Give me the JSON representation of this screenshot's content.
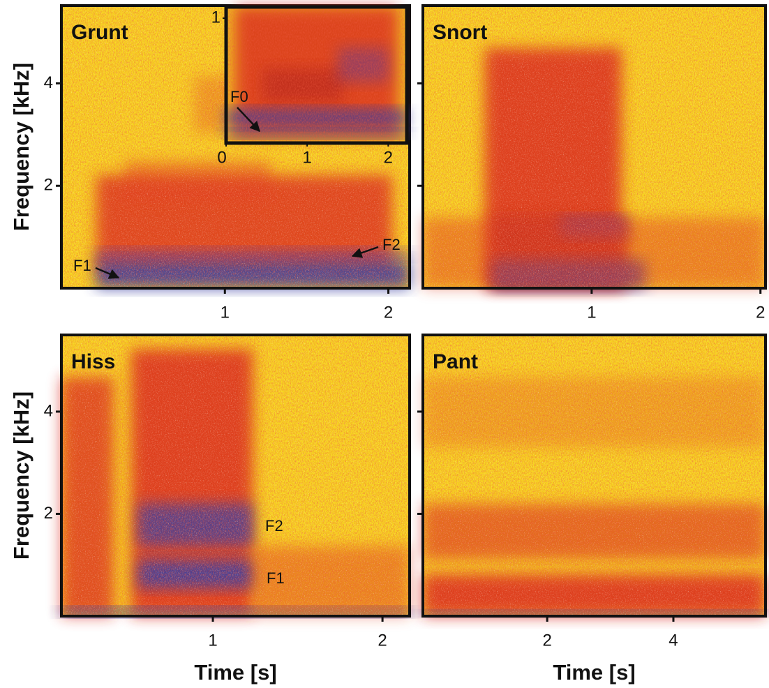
{
  "chart_data": [
    {
      "type": "spectrogram",
      "title": "Grunt",
      "ylabel": "Frequency [kHz]",
      "xlim": [
        0,
        2.13
      ],
      "ylim": [
        0,
        5.52
      ],
      "xticks": [
        1,
        2
      ],
      "yticks": [
        2,
        4
      ],
      "annotations": [
        "F1",
        "F2"
      ],
      "inset": {
        "xlim": [
          0,
          2.23
        ],
        "ylim": [
          0,
          1.09
        ],
        "xticks": [
          0,
          1,
          2
        ],
        "yticks": [
          1
        ],
        "annotations": [
          "F0"
        ]
      }
    },
    {
      "type": "spectrogram",
      "title": "Snort",
      "xlim": [
        0,
        2.03
      ],
      "ylim": [
        0,
        5.52
      ],
      "xticks": [
        1,
        2
      ],
      "yticks": [
        2,
        4
      ],
      "annotations": []
    },
    {
      "type": "spectrogram",
      "title": "Hiss",
      "ylabel": "Frequency [kHz]",
      "xlabel": "Time [s]",
      "xlim": [
        0.107,
        2.16
      ],
      "ylim": [
        0,
        5.5
      ],
      "xticks": [
        1,
        2
      ],
      "yticks": [
        2,
        4
      ],
      "annotations": [
        "F2",
        "F1"
      ]
    },
    {
      "type": "spectrogram",
      "title": "Pant",
      "xlabel": "Time [s]",
      "xlim": [
        0.03,
        5.46
      ],
      "ylim": [
        0,
        5.5
      ],
      "xticks": [
        2,
        4
      ],
      "yticks": [
        2,
        4
      ],
      "annotations": []
    }
  ]
}
